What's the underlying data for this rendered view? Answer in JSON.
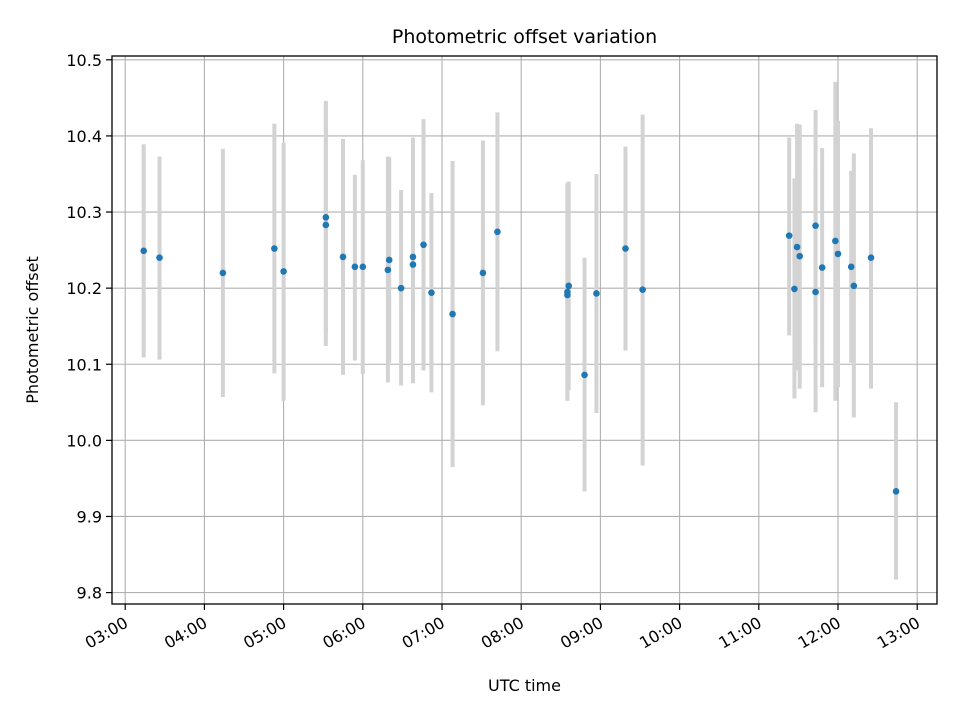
{
  "chart_data": {
    "type": "scatter",
    "title": "Photometric offset variation",
    "xlabel": "UTC time",
    "ylabel": "Photometric offset",
    "xlim": [
      "02:50",
      "13:15"
    ],
    "ylim": [
      9.785,
      10.505
    ],
    "grid": true,
    "x_ticks": [
      "03:00",
      "04:00",
      "05:00",
      "06:00",
      "07:00",
      "08:00",
      "09:00",
      "10:00",
      "11:00",
      "12:00",
      "13:00"
    ],
    "y_ticks": [
      9.8,
      9.9,
      10.0,
      10.1,
      10.2,
      10.3,
      10.4,
      10.5
    ],
    "y_tick_labels": [
      "9.8",
      "9.9",
      "10.0",
      "10.1",
      "10.2",
      "10.3",
      "10.4",
      "10.5"
    ],
    "colors": {
      "points": "#1f77b4",
      "error_bars": "#d3d3d3",
      "grid": "#b0b0b0"
    },
    "points": [
      {
        "x": "03:14",
        "y": 10.249,
        "y_low": 10.109,
        "y_high": 10.389
      },
      {
        "x": "03:26",
        "y": 10.24,
        "y_low": 10.106,
        "y_high": 10.373
      },
      {
        "x": "04:14",
        "y": 10.22,
        "y_low": 10.057,
        "y_high": 10.383
      },
      {
        "x": "04:53",
        "y": 10.252,
        "y_low": 10.088,
        "y_high": 10.416
      },
      {
        "x": "05:00",
        "y": 10.222,
        "y_low": 10.052,
        "y_high": 10.391
      },
      {
        "x": "05:32",
        "y": 10.283,
        "y_low": 10.124,
        "y_high": 10.444
      },
      {
        "x": "05:32",
        "y": 10.293,
        "y_low": 10.14,
        "y_high": 10.446
      },
      {
        "x": "05:45",
        "y": 10.241,
        "y_low": 10.086,
        "y_high": 10.396
      },
      {
        "x": "05:54",
        "y": 10.228,
        "y_low": 10.105,
        "y_high": 10.349
      },
      {
        "x": "06:00",
        "y": 10.228,
        "y_low": 10.087,
        "y_high": 10.368
      },
      {
        "x": "06:19",
        "y": 10.224,
        "y_low": 10.076,
        "y_high": 10.373
      },
      {
        "x": "06:20",
        "y": 10.237,
        "y_low": 10.102,
        "y_high": 10.372
      },
      {
        "x": "06:29",
        "y": 10.2,
        "y_low": 10.072,
        "y_high": 10.329
      },
      {
        "x": "06:38",
        "y": 10.231,
        "y_low": 10.075,
        "y_high": 10.387
      },
      {
        "x": "06:38",
        "y": 10.241,
        "y_low": 10.083,
        "y_high": 10.398
      },
      {
        "x": "06:46",
        "y": 10.257,
        "y_low": 10.092,
        "y_high": 10.422
      },
      {
        "x": "06:52",
        "y": 10.194,
        "y_low": 10.063,
        "y_high": 10.325
      },
      {
        "x": "07:08",
        "y": 10.166,
        "y_low": 9.965,
        "y_high": 10.367
      },
      {
        "x": "07:31",
        "y": 10.22,
        "y_low": 10.046,
        "y_high": 10.394
      },
      {
        "x": "07:42",
        "y": 10.274,
        "y_low": 10.117,
        "y_high": 10.431
      },
      {
        "x": "08:35",
        "y": 10.191,
        "y_low": 10.052,
        "y_high": 10.33
      },
      {
        "x": "08:35",
        "y": 10.195,
        "y_low": 10.052,
        "y_high": 10.338
      },
      {
        "x": "08:36",
        "y": 10.203,
        "y_low": 10.066,
        "y_high": 10.34
      },
      {
        "x": "08:48",
        "y": 10.086,
        "y_low": 9.933,
        "y_high": 10.24
      },
      {
        "x": "08:57",
        "y": 10.193,
        "y_low": 10.036,
        "y_high": 10.35
      },
      {
        "x": "09:19",
        "y": 10.252,
        "y_low": 10.118,
        "y_high": 10.386
      },
      {
        "x": "09:32",
        "y": 10.198,
        "y_low": 9.967,
        "y_high": 10.428
      },
      {
        "x": "11:23",
        "y": 10.269,
        "y_low": 10.138,
        "y_high": 10.398
      },
      {
        "x": "11:27",
        "y": 10.199,
        "y_low": 10.055,
        "y_high": 10.344
      },
      {
        "x": "11:29",
        "y": 10.254,
        "y_low": 10.092,
        "y_high": 10.416
      },
      {
        "x": "11:31",
        "y": 10.242,
        "y_low": 10.068,
        "y_high": 10.415
      },
      {
        "x": "11:43",
        "y": 10.282,
        "y_low": 10.13,
        "y_high": 10.434
      },
      {
        "x": "11:43",
        "y": 10.195,
        "y_low": 10.037,
        "y_high": 10.354
      },
      {
        "x": "11:48",
        "y": 10.227,
        "y_low": 10.07,
        "y_high": 10.384
      },
      {
        "x": "11:58",
        "y": 10.262,
        "y_low": 10.052,
        "y_high": 10.471
      },
      {
        "x": "12:00",
        "y": 10.245,
        "y_low": 10.07,
        "y_high": 10.42
      },
      {
        "x": "12:10",
        "y": 10.228,
        "y_low": 10.102,
        "y_high": 10.354
      },
      {
        "x": "12:12",
        "y": 10.203,
        "y_low": 10.03,
        "y_high": 10.377
      },
      {
        "x": "12:25",
        "y": 10.24,
        "y_low": 10.068,
        "y_high": 10.41
      },
      {
        "x": "12:44",
        "y": 9.933,
        "y_low": 9.817,
        "y_high": 10.05
      }
    ]
  }
}
